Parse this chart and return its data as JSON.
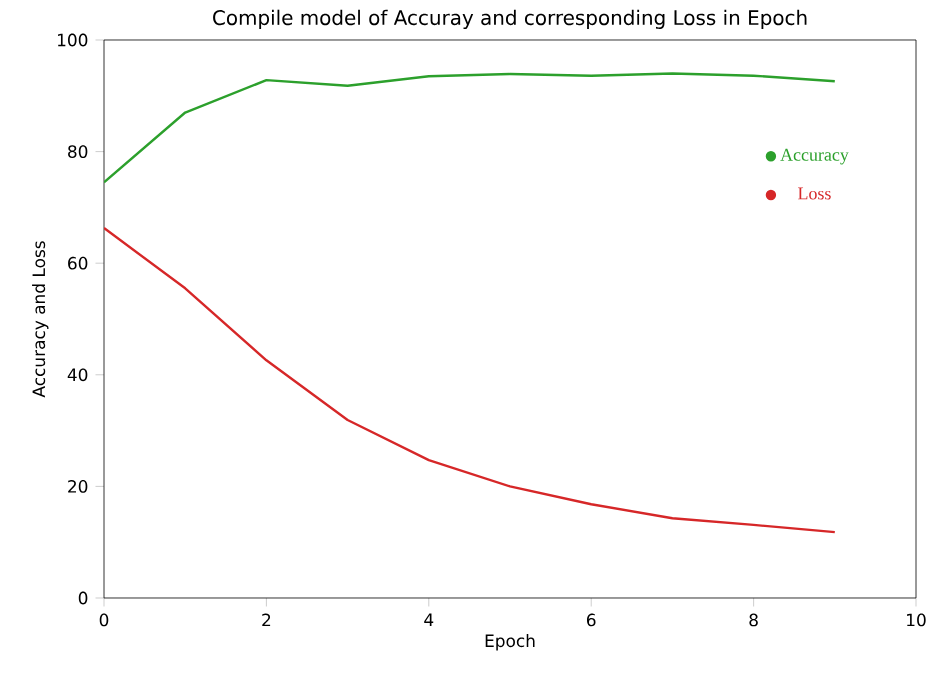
{
  "chart_data": {
    "type": "line",
    "title": "Compile model of Accuray and corresponding Loss in Epoch",
    "xlabel": "Epoch",
    "ylabel": "Accuracy and Loss",
    "x": [
      0,
      1,
      2,
      3,
      4,
      5,
      6,
      7,
      8,
      9
    ],
    "series": [
      {
        "name": "Accuracy",
        "color": "#2ca02c",
        "values": [
          74.5,
          87,
          92.8,
          91.8,
          93.5,
          93.9,
          93.6,
          94,
          93.6,
          92.6
        ]
      },
      {
        "name": "Loss",
        "color": "#d62728",
        "values": [
          66.3,
          55.5,
          42.6,
          31.9,
          24.7,
          20,
          16.8,
          14.3,
          13.1,
          11.8
        ]
      }
    ],
    "xlim": [
      0,
      10
    ],
    "ylim": [
      0,
      100
    ],
    "xticks": [
      0,
      2,
      4,
      6,
      8,
      10
    ],
    "yticks": [
      0,
      20,
      40,
      60,
      80,
      100
    ],
    "legend": "right",
    "grid": false
  }
}
